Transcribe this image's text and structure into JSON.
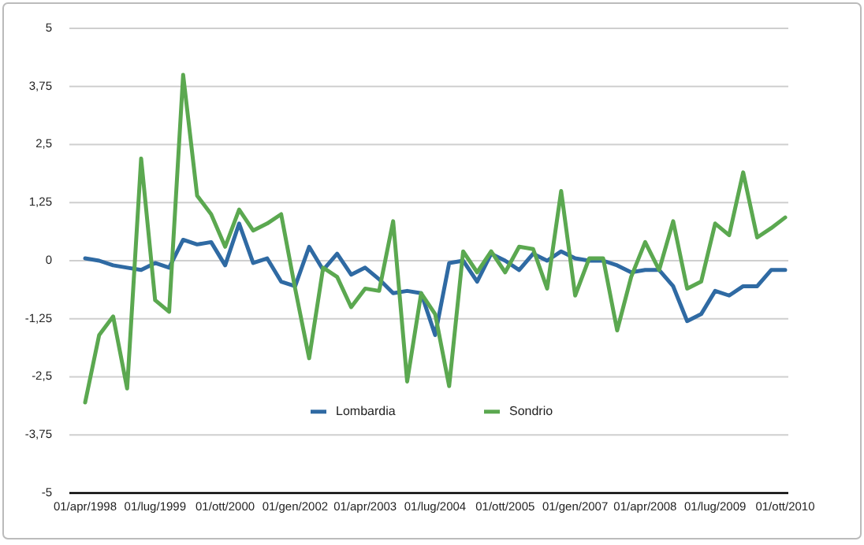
{
  "chart_data": {
    "type": "line",
    "categories": [
      "01/apr/1998",
      null,
      null,
      null,
      null,
      "01/lug/1999",
      null,
      null,
      null,
      null,
      "01/ott/2000",
      null,
      null,
      null,
      null,
      "01/gen/2002",
      null,
      null,
      null,
      null,
      "01/apr/2003",
      null,
      null,
      null,
      null,
      "01/lug/2004",
      null,
      null,
      null,
      null,
      "01/ott/2005",
      null,
      null,
      null,
      null,
      "01/gen/2007",
      null,
      null,
      null,
      null,
      "01/apr/2008",
      null,
      null,
      null,
      null,
      "01/lug/2009",
      null,
      null,
      null,
      null,
      "01/ott/2010"
    ],
    "series": [
      {
        "name": "Lombardia",
        "color": "#2f6aa3",
        "values": [
          0.05,
          0.0,
          -0.1,
          -0.15,
          -0.2,
          -0.05,
          -0.15,
          0.45,
          0.35,
          0.4,
          -0.1,
          0.8,
          -0.05,
          0.05,
          -0.45,
          -0.55,
          0.3,
          -0.2,
          0.15,
          -0.3,
          -0.15,
          -0.4,
          -0.7,
          -0.65,
          -0.7,
          -1.6,
          -0.05,
          0.0,
          -0.45,
          0.15,
          0.0,
          -0.2,
          0.15,
          0.0,
          0.2,
          0.05,
          0.0,
          0.0,
          -0.1,
          -0.25,
          -0.2,
          -0.2,
          -0.55,
          -1.3,
          -1.15,
          -0.65,
          -0.75,
          -0.55,
          -0.55,
          -0.2,
          -0.2
        ]
      },
      {
        "name": "Sondrio",
        "color": "#5ba850",
        "values": [
          -3.05,
          -1.6,
          -1.2,
          -2.75,
          2.2,
          -0.85,
          -1.1,
          4.0,
          1.4,
          1.0,
          0.3,
          1.1,
          0.65,
          0.8,
          1.0,
          -0.6,
          -2.1,
          -0.15,
          -0.35,
          -1.0,
          -0.6,
          -0.65,
          0.85,
          -2.6,
          -0.7,
          -1.15,
          -2.7,
          0.2,
          -0.25,
          0.2,
          -0.25,
          0.3,
          0.25,
          -0.6,
          1.5,
          -0.75,
          0.05,
          0.05,
          -1.5,
          -0.35,
          0.4,
          -0.2,
          0.85,
          -0.6,
          -0.45,
          0.8,
          0.55,
          1.9,
          0.5,
          0.7,
          0.93
        ]
      }
    ],
    "ylim": [
      -5,
      5
    ],
    "yticks": [
      -5,
      {
        "value": -3.75,
        "label": "-3,75"
      },
      {
        "value": -2.5,
        "label": "-2,5"
      },
      {
        "value": -1.25,
        "label": "-1,25"
      },
      0,
      {
        "value": 1.25,
        "label": "1,25"
      },
      {
        "value": 2.5,
        "label": "2,5"
      },
      {
        "value": 3.75,
        "label": "3,75"
      },
      5
    ],
    "grid": "y",
    "legend": "bottom",
    "line_style": "solid"
  }
}
